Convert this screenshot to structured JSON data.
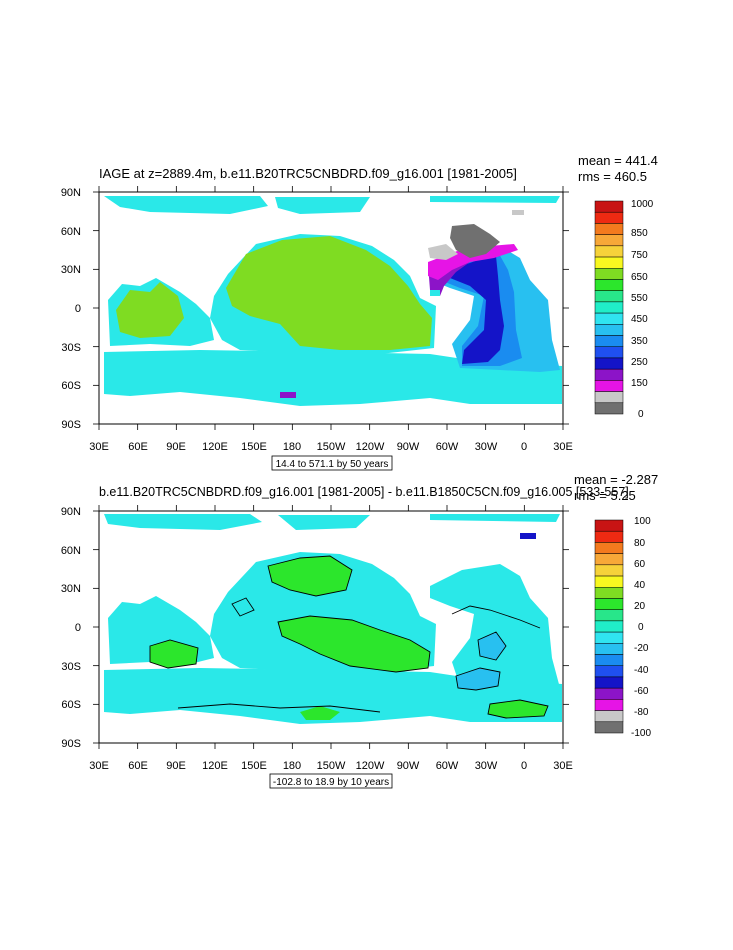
{
  "panel_top": {
    "title": "IAGE at z=2889.4m, b.e11.B20TRC5CNBDRD.f09_g16.001 [1981-2005]",
    "stats_mean": "mean = 441.4",
    "stats_rms": "rms = 460.5",
    "range_label": "14.4 to 571.1 by 50 years",
    "y_ticks": [
      "90N",
      "60N",
      "30N",
      "0",
      "30S",
      "60S",
      "90S"
    ],
    "x_ticks": [
      "30E",
      "60E",
      "90E",
      "120E",
      "150E",
      "180",
      "150W",
      "120W",
      "90W",
      "60W",
      "30W",
      "0",
      "30E"
    ],
    "colorbar_labels": [
      "1000",
      "850",
      "750",
      "650",
      "550",
      "450",
      "350",
      "250",
      "150",
      "0"
    ],
    "colorbar_colors": [
      "#c81414",
      "#ee2a12",
      "#f37a1e",
      "#f7a838",
      "#f6d23a",
      "#f8f820",
      "#7fdc22",
      "#2ce62c",
      "#28e68a",
      "#20eec8",
      "#30e4f0",
      "#28c0f0",
      "#1a8cf0",
      "#1f50f0",
      "#1414c8",
      "#8c14c8",
      "#e614e6",
      "#c8c8c8",
      "#707070"
    ]
  },
  "panel_bottom": {
    "title": "b.e11.B20TRC5CNBDRD.f09_g16.001 [1981-2005] - b.e11.B1850C5CN.f09_g16.005 [533-557]",
    "stats_mean": "mean = -2.287",
    "stats_rms": "rms = 5.25",
    "range_label": "-102.8 to 18.9 by 10 years",
    "y_ticks": [
      "90N",
      "60N",
      "30N",
      "0",
      "30S",
      "60S",
      "90S"
    ],
    "x_ticks": [
      "30E",
      "60E",
      "90E",
      "120E",
      "150E",
      "180",
      "150W",
      "120W",
      "90W",
      "60W",
      "30W",
      "0",
      "30E"
    ],
    "colorbar_labels": [
      "100",
      "80",
      "60",
      "40",
      "20",
      "0",
      "-20",
      "-40",
      "-60",
      "-80",
      "-100"
    ],
    "colorbar_colors": [
      "#c81414",
      "#ee2a12",
      "#f37a1e",
      "#f7a838",
      "#f6d23a",
      "#f8f820",
      "#7fdc22",
      "#2ce62c",
      "#28e68a",
      "#20eec8",
      "#30e4f0",
      "#28c0f0",
      "#1a8cf0",
      "#1f50f0",
      "#1414c8",
      "#8c14c8",
      "#e614e6",
      "#c8c8c8",
      "#707070"
    ]
  },
  "colors": {
    "ocean_cyan": "#2ae8e8",
    "ocean_green_light": "#7fdc22",
    "ocean_green": "#2ce62c",
    "ocean_blue": "#28c0f0",
    "ocean_mid_blue": "#1a8cf0",
    "ocean_deep_blue": "#1414c8",
    "ocean_purple": "#8c14c8",
    "ocean_magenta": "#e614e6",
    "grey": "#707070",
    "light_grey": "#c8c8c8",
    "land": "#ffffff"
  }
}
